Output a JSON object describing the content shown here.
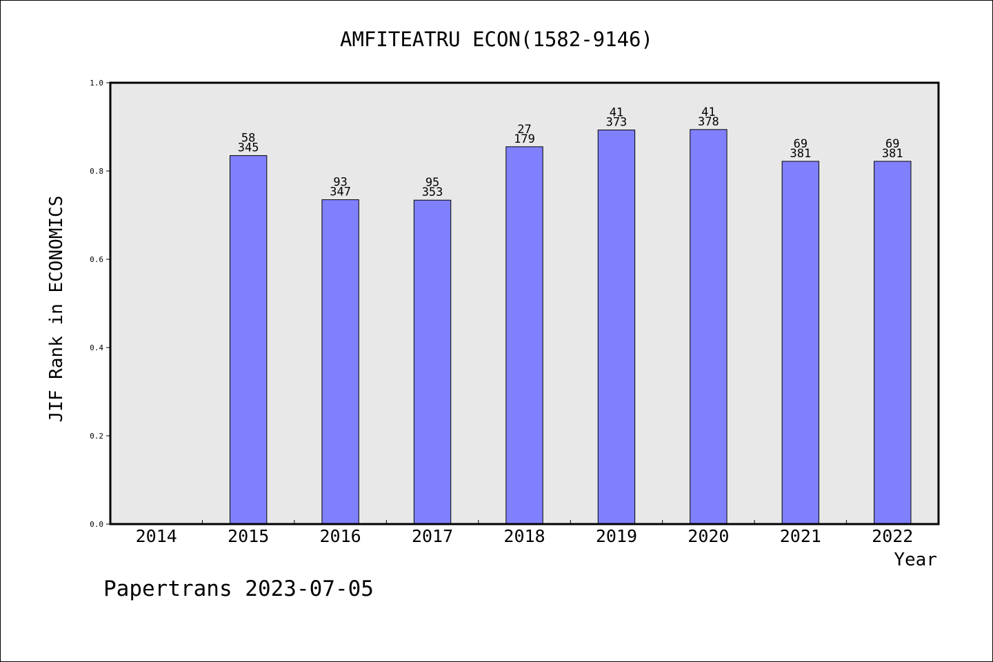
{
  "chart_data": {
    "type": "bar",
    "title": "AMFITEATRU ECON(1582-9146)",
    "xlabel": "Year",
    "ylabel": "JIF Rank in ECONOMICS",
    "ylim": [
      0,
      1
    ],
    "yticks": [
      "0.0",
      "0.2",
      "0.4",
      "0.6",
      "0.8",
      "1.0"
    ],
    "grid": false,
    "bar_color": "#8080ff",
    "plot_background": "#e8e8e8",
    "categories": [
      "2014",
      "2015",
      "2016",
      "2017",
      "2018",
      "2019",
      "2020",
      "2021",
      "2022"
    ],
    "values": [
      null,
      0.835,
      0.735,
      0.734,
      0.855,
      0.893,
      0.894,
      0.822,
      0.822
    ],
    "rank": [
      null,
      "58",
      "93",
      "95",
      "27",
      "41",
      "41",
      "69",
      "69"
    ],
    "total": [
      null,
      "345",
      "347",
      "353",
      "179",
      "373",
      "378",
      "381",
      "381"
    ]
  },
  "footer": {
    "source": "Papertrans 2023-07-05"
  }
}
